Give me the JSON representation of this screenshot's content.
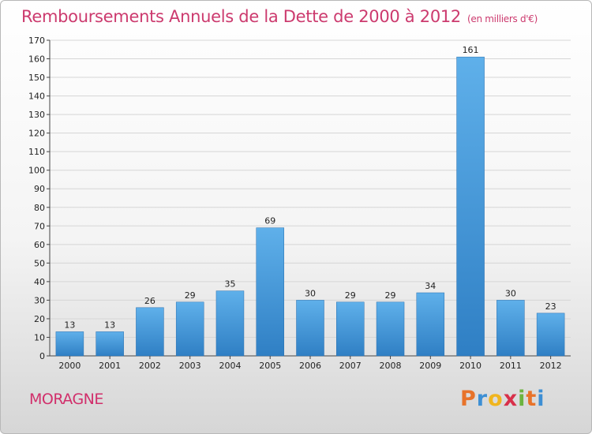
{
  "chart_data": {
    "type": "bar",
    "title": "Remboursements Annuels de la Dette de 2000 à 2012",
    "subtitle": "(en milliers d'€)",
    "categories": [
      "2000",
      "2001",
      "2002",
      "2003",
      "2004",
      "2005",
      "2006",
      "2007",
      "2008",
      "2009",
      "2010",
      "2011",
      "2012"
    ],
    "values": [
      13,
      13,
      26,
      29,
      35,
      69,
      30,
      29,
      29,
      34,
      161,
      30,
      23
    ],
    "ylim": [
      0,
      170
    ],
    "yticks": [
      0,
      10,
      20,
      30,
      40,
      50,
      60,
      70,
      80,
      90,
      100,
      110,
      120,
      130,
      140,
      150,
      160,
      170
    ],
    "grid": true,
    "bar_color": "#3a8fd6"
  },
  "footer": {
    "commune": "MORAGNE",
    "logo_letters": [
      "P",
      "r",
      "o",
      "x",
      "i",
      "t",
      "i"
    ],
    "logo_colors": [
      "#e8732a",
      "#3d8fd4",
      "#f0b51e",
      "#d8304a",
      "#6cb33f",
      "#e8732a",
      "#3d8fd4"
    ]
  }
}
